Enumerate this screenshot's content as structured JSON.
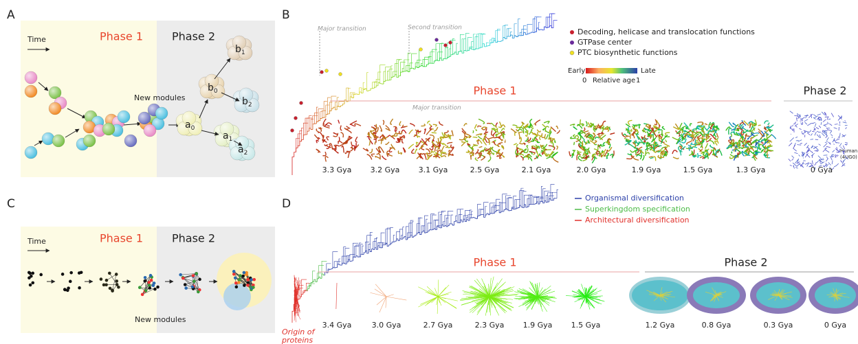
{
  "panels": {
    "a": {
      "letter": "A",
      "time": "Time",
      "phase1": "Phase 1",
      "phase2": "Phase 2",
      "new_modules": "New modules",
      "modules": [
        {
          "base": "a",
          "sub": "0"
        },
        {
          "base": "a",
          "sub": "1"
        },
        {
          "base": "a",
          "sub": "2"
        },
        {
          "base": "b",
          "sub": "0"
        },
        {
          "base": "b",
          "sub": "1"
        },
        {
          "base": "b",
          "sub": "2"
        }
      ]
    },
    "b": {
      "letter": "B",
      "major_transition": "Major transition",
      "second_transition": "Second transition",
      "legend": [
        "Decoding, helicase and translocation functions",
        "GTPase center",
        "PTC biosynthetic functions"
      ],
      "colorbar": {
        "early": "Early",
        "late": "Late",
        "min": "0",
        "title": "Relative age",
        "max": "1"
      },
      "phase1": "Phase 1",
      "phase2": "Phase 2",
      "inner_transition": "Major transition",
      "phase1_ages": [
        "3.3 Gya",
        "3.2 Gya",
        "3.1 Gya",
        "2.5 Gya",
        "2.1 Gya",
        "2.0 Gya",
        "1.9 Gya",
        "1.5 Gya",
        "1.3 Gya"
      ],
      "phase2_ages": [
        "0 Gya"
      ],
      "human_label": [
        "Human",
        "(4UG0)"
      ]
    },
    "c": {
      "letter": "C",
      "time": "Time",
      "phase1": "Phase 1",
      "phase2": "Phase 2",
      "new_modules": "New modules"
    },
    "d": {
      "letter": "D",
      "legend": [
        "Organismal diversification",
        "Superkingdom specification",
        "Architectural diversification"
      ],
      "phase1": "Phase 1",
      "phase2": "Phase 2",
      "phase1_ages": [
        "3.4 Gya",
        "3.0 Gya",
        "2.7 Gya",
        "2.3 Gya",
        "1.9 Gya",
        "1.5 Gya"
      ],
      "phase2_ages": [
        "1.2 Gya",
        "0.8 Gya",
        "0.3 Gya",
        "0 Gya"
      ],
      "origin": [
        "Origin of",
        "proteins"
      ]
    }
  }
}
